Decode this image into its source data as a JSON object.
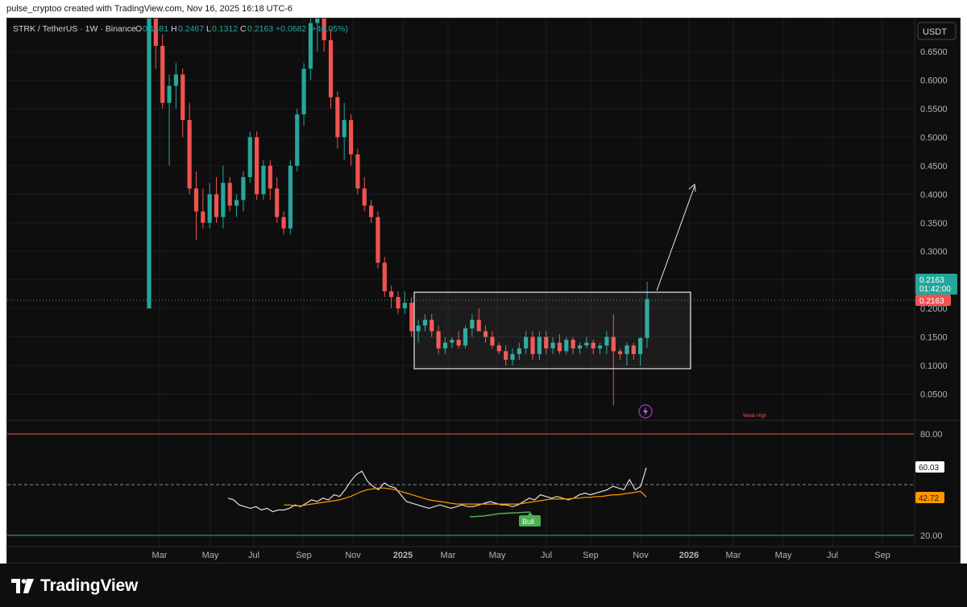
{
  "header": {
    "attribution": "pulse_cryptoo created with TradingView.com, Nov 16, 2025 16:18 UTC-6"
  },
  "legend": {
    "symbol": "STRK / TetherUS · 1W · Binance",
    "o_label": "O",
    "o_value": "0.1481",
    "h_label": "H",
    "h_value": "0.2467",
    "l_label": "L",
    "l_value": "0.1312",
    "c_label": "C",
    "c_value": "0.2163",
    "change": "+0.0682 (+46.05%)"
  },
  "currency_button": "USDT",
  "price_badges": {
    "last_price": "0.2163",
    "countdown": "01:42:00",
    "close_price": "0.2163"
  },
  "annotations": {
    "weak_high": "Weak High",
    "bull": "Bull"
  },
  "rsi_badges": {
    "rsi_value": "60.03",
    "rsi_ma_value": "42.72"
  },
  "brand": {
    "name": "TradingView"
  },
  "colors": {
    "background": "#0e0e0e",
    "up": "#26a69a",
    "down": "#ef5350",
    "grid": "#1c1c1c",
    "axis_text": "#b2b5be",
    "rsi_line": "#e0e0e0",
    "rsi_ma": "#ff9800",
    "bull_label": "#4caf50",
    "level_80": "#ef5350",
    "level_20": "#4caf50"
  },
  "chart_data": [
    {
      "type": "candlestick",
      "title": "STRK / TetherUS · 1W · Binance",
      "y_axis": {
        "scale": "linear",
        "range": [
          0.0,
          0.7
        ],
        "ticks": [
          "0.6500",
          "0.6000",
          "0.5500",
          "0.5000",
          "0.4500",
          "0.4000",
          "0.3500",
          "0.3000",
          "0.2500",
          "0.2000",
          "0.1500",
          "0.1000",
          "0.0500"
        ]
      },
      "x_axis": {
        "ticks": [
          "Mar",
          "May",
          "Jul",
          "Sep",
          "Nov",
          "2025",
          "Mar",
          "May",
          "Jul",
          "Sep",
          "Nov",
          "2026",
          "Mar",
          "May",
          "Jul",
          "Sep"
        ]
      },
      "last_price": 0.2163,
      "candles": [
        {
          "o": 0.2,
          "h": 2.0,
          "l": 0.2,
          "c": 2.0
        },
        {
          "o": 0.72,
          "h": 0.75,
          "l": 0.62,
          "c": 0.66
        },
        {
          "o": 0.66,
          "h": 0.68,
          "l": 0.55,
          "c": 0.56
        },
        {
          "o": 0.56,
          "h": 0.61,
          "l": 0.45,
          "c": 0.59
        },
        {
          "o": 0.59,
          "h": 0.63,
          "l": 0.55,
          "c": 0.61
        },
        {
          "o": 0.61,
          "h": 0.62,
          "l": 0.5,
          "c": 0.53
        },
        {
          "o": 0.53,
          "h": 0.56,
          "l": 0.4,
          "c": 0.41
        },
        {
          "o": 0.41,
          "h": 0.44,
          "l": 0.32,
          "c": 0.37
        },
        {
          "o": 0.37,
          "h": 0.41,
          "l": 0.34,
          "c": 0.35
        },
        {
          "o": 0.35,
          "h": 0.42,
          "l": 0.34,
          "c": 0.4
        },
        {
          "o": 0.4,
          "h": 0.43,
          "l": 0.35,
          "c": 0.36
        },
        {
          "o": 0.36,
          "h": 0.45,
          "l": 0.34,
          "c": 0.42
        },
        {
          "o": 0.42,
          "h": 0.43,
          "l": 0.37,
          "c": 0.38
        },
        {
          "o": 0.38,
          "h": 0.4,
          "l": 0.36,
          "c": 0.39
        },
        {
          "o": 0.39,
          "h": 0.44,
          "l": 0.37,
          "c": 0.43
        },
        {
          "o": 0.43,
          "h": 0.51,
          "l": 0.42,
          "c": 0.5
        },
        {
          "o": 0.5,
          "h": 0.51,
          "l": 0.39,
          "c": 0.4
        },
        {
          "o": 0.4,
          "h": 0.46,
          "l": 0.39,
          "c": 0.45
        },
        {
          "o": 0.45,
          "h": 0.46,
          "l": 0.39,
          "c": 0.41
        },
        {
          "o": 0.41,
          "h": 0.43,
          "l": 0.35,
          "c": 0.36
        },
        {
          "o": 0.36,
          "h": 0.37,
          "l": 0.33,
          "c": 0.34
        },
        {
          "o": 0.34,
          "h": 0.46,
          "l": 0.33,
          "c": 0.45
        },
        {
          "o": 0.45,
          "h": 0.55,
          "l": 0.44,
          "c": 0.54
        },
        {
          "o": 0.54,
          "h": 0.63,
          "l": 0.52,
          "c": 0.62
        },
        {
          "o": 0.62,
          "h": 0.72,
          "l": 0.6,
          "c": 0.7
        },
        {
          "o": 0.7,
          "h": 0.76,
          "l": 0.65,
          "c": 0.74
        },
        {
          "o": 0.74,
          "h": 0.76,
          "l": 0.65,
          "c": 0.67
        },
        {
          "o": 0.67,
          "h": 0.69,
          "l": 0.55,
          "c": 0.57
        },
        {
          "o": 0.57,
          "h": 0.58,
          "l": 0.48,
          "c": 0.5
        },
        {
          "o": 0.5,
          "h": 0.56,
          "l": 0.46,
          "c": 0.53
        },
        {
          "o": 0.53,
          "h": 0.54,
          "l": 0.45,
          "c": 0.47
        },
        {
          "o": 0.47,
          "h": 0.48,
          "l": 0.4,
          "c": 0.41
        },
        {
          "o": 0.41,
          "h": 0.43,
          "l": 0.37,
          "c": 0.38
        },
        {
          "o": 0.38,
          "h": 0.39,
          "l": 0.35,
          "c": 0.36
        },
        {
          "o": 0.36,
          "h": 0.37,
          "l": 0.27,
          "c": 0.28
        },
        {
          "o": 0.28,
          "h": 0.29,
          "l": 0.22,
          "c": 0.23
        },
        {
          "o": 0.23,
          "h": 0.24,
          "l": 0.2,
          "c": 0.22
        },
        {
          "o": 0.22,
          "h": 0.23,
          "l": 0.19,
          "c": 0.2
        },
        {
          "o": 0.2,
          "h": 0.23,
          "l": 0.19,
          "c": 0.21
        },
        {
          "o": 0.21,
          "h": 0.22,
          "l": 0.15,
          "c": 0.16
        },
        {
          "o": 0.16,
          "h": 0.18,
          "l": 0.14,
          "c": 0.17
        },
        {
          "o": 0.17,
          "h": 0.19,
          "l": 0.16,
          "c": 0.18
        },
        {
          "o": 0.18,
          "h": 0.19,
          "l": 0.15,
          "c": 0.16
        },
        {
          "o": 0.16,
          "h": 0.17,
          "l": 0.12,
          "c": 0.13
        },
        {
          "o": 0.13,
          "h": 0.15,
          "l": 0.12,
          "c": 0.14
        },
        {
          "o": 0.14,
          "h": 0.15,
          "l": 0.13,
          "c": 0.145
        },
        {
          "o": 0.145,
          "h": 0.16,
          "l": 0.13,
          "c": 0.135
        },
        {
          "o": 0.135,
          "h": 0.17,
          "l": 0.13,
          "c": 0.165
        },
        {
          "o": 0.165,
          "h": 0.19,
          "l": 0.15,
          "c": 0.18
        },
        {
          "o": 0.18,
          "h": 0.2,
          "l": 0.16,
          "c": 0.16
        },
        {
          "o": 0.16,
          "h": 0.17,
          "l": 0.14,
          "c": 0.15
        },
        {
          "o": 0.15,
          "h": 0.16,
          "l": 0.13,
          "c": 0.135
        },
        {
          "o": 0.135,
          "h": 0.14,
          "l": 0.12,
          "c": 0.125
        },
        {
          "o": 0.125,
          "h": 0.135,
          "l": 0.1,
          "c": 0.11
        },
        {
          "o": 0.11,
          "h": 0.13,
          "l": 0.1,
          "c": 0.12
        },
        {
          "o": 0.12,
          "h": 0.14,
          "l": 0.11,
          "c": 0.13
        },
        {
          "o": 0.13,
          "h": 0.16,
          "l": 0.12,
          "c": 0.15
        },
        {
          "o": 0.15,
          "h": 0.16,
          "l": 0.11,
          "c": 0.12
        },
        {
          "o": 0.12,
          "h": 0.16,
          "l": 0.11,
          "c": 0.15
        },
        {
          "o": 0.15,
          "h": 0.16,
          "l": 0.12,
          "c": 0.13
        },
        {
          "o": 0.13,
          "h": 0.15,
          "l": 0.12,
          "c": 0.14
        },
        {
          "o": 0.14,
          "h": 0.155,
          "l": 0.12,
          "c": 0.125
        },
        {
          "o": 0.125,
          "h": 0.15,
          "l": 0.12,
          "c": 0.145
        },
        {
          "o": 0.145,
          "h": 0.15,
          "l": 0.12,
          "c": 0.13
        },
        {
          "o": 0.13,
          "h": 0.14,
          "l": 0.12,
          "c": 0.135
        },
        {
          "o": 0.135,
          "h": 0.15,
          "l": 0.13,
          "c": 0.14
        },
        {
          "o": 0.14,
          "h": 0.145,
          "l": 0.12,
          "c": 0.13
        },
        {
          "o": 0.13,
          "h": 0.14,
          "l": 0.12,
          "c": 0.135
        },
        {
          "o": 0.135,
          "h": 0.16,
          "l": 0.12,
          "c": 0.15
        },
        {
          "o": 0.15,
          "h": 0.19,
          "l": 0.03,
          "c": 0.125
        },
        {
          "o": 0.125,
          "h": 0.13,
          "l": 0.11,
          "c": 0.12
        },
        {
          "o": 0.12,
          "h": 0.14,
          "l": 0.1,
          "c": 0.135
        },
        {
          "o": 0.135,
          "h": 0.14,
          "l": 0.11,
          "c": 0.12
        },
        {
          "o": 0.12,
          "h": 0.15,
          "l": 0.1,
          "c": 0.148
        },
        {
          "o": 0.1481,
          "h": 0.2467,
          "l": 0.1312,
          "c": 0.2163
        }
      ]
    },
    {
      "type": "line",
      "title": "RSI",
      "y_axis": {
        "range": [
          10,
          90
        ],
        "ticks": [
          "80.00",
          "20.00"
        ]
      },
      "levels": [
        80,
        50,
        20
      ],
      "series": [
        {
          "color": "#e0e0e0",
          "values": [
            42,
            41,
            38,
            37,
            36,
            37,
            35,
            36,
            34,
            35,
            35,
            36,
            38,
            37,
            39,
            41,
            40,
            42,
            41,
            44,
            43,
            47,
            52,
            56,
            58,
            52,
            49,
            47,
            51,
            49,
            48,
            44,
            40,
            39,
            38,
            37,
            36,
            37,
            38,
            37,
            36,
            37,
            38,
            37,
            37,
            38,
            39,
            40,
            39,
            38,
            38,
            37,
            38,
            40,
            42,
            41,
            44,
            43,
            42,
            43,
            42,
            41,
            42,
            44,
            45,
            44,
            45,
            46,
            47,
            49,
            48,
            47,
            53,
            47,
            49,
            60.03
          ]
        },
        {
          "color": "#ff9800",
          "values": [
            null,
            null,
            null,
            null,
            null,
            null,
            null,
            null,
            null,
            null,
            38,
            38,
            37.5,
            37.5,
            38,
            38.5,
            39,
            39.5,
            40,
            40.5,
            41,
            42,
            43,
            44.5,
            46,
            47,
            47.5,
            48,
            48,
            47.5,
            47,
            46,
            45,
            44,
            43,
            42,
            41,
            40.5,
            40,
            39.5,
            39,
            38.5,
            38.5,
            38.5,
            38.5,
            38.5,
            38.5,
            38.5,
            38.5,
            38.5,
            38.5,
            38.5,
            38.5,
            39,
            39.5,
            40,
            40.5,
            41,
            41.5,
            41.5,
            41.5,
            41.5,
            42,
            42,
            42.5,
            42.5,
            43,
            43,
            43.5,
            44,
            44,
            44.5,
            45,
            45.5,
            46,
            42.72
          ]
        }
      ]
    }
  ]
}
